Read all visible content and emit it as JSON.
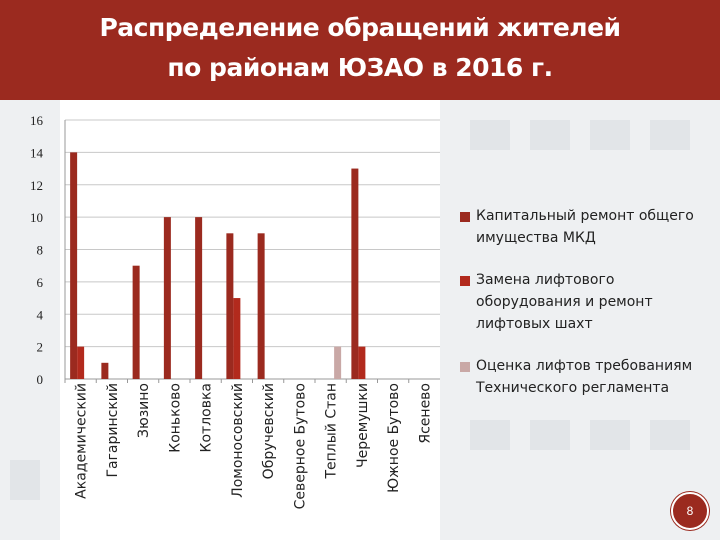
{
  "header": {
    "title_line1": "Распределение обращений жителей",
    "title_line2": "по районам ЮЗАО в 2016 г."
  },
  "colors": {
    "header_bg": "#9b2a1f",
    "series": [
      "#9b2a1f",
      "#b22a1d",
      "#c9a8a6"
    ]
  },
  "page_number": "8",
  "chart_data": {
    "type": "bar",
    "categories": [
      "Академический",
      "Гагаринский",
      "Зюзино",
      "Коньково",
      "Котловка",
      "Ломоносовский",
      "Обручевский",
      "Северное Бутово",
      "Теплый Стан",
      "Черемушки",
      "Южное Бутово",
      "Ясенево"
    ],
    "series": [
      {
        "name": "Капитальный ремонт общего имущества МКД",
        "values": [
          14,
          1,
          7,
          10,
          10,
          9,
          9,
          0,
          0,
          13,
          0,
          0
        ]
      },
      {
        "name": "Замена лифтового оборудования и ремонт лифтовых шахт",
        "values": [
          2,
          0,
          0,
          0,
          0,
          5,
          0,
          0,
          0,
          2,
          0,
          0
        ]
      },
      {
        "name": "Оценка лифтов требованиям Технического регламента",
        "values": [
          0,
          0,
          0,
          0,
          0,
          0,
          0,
          0,
          2,
          0,
          0,
          0
        ]
      }
    ],
    "y_ticks": [
      0,
      2,
      4,
      6,
      8,
      10,
      12,
      14,
      16
    ],
    "ylim": [
      0,
      16
    ],
    "grid": true,
    "legend_position": "right"
  }
}
